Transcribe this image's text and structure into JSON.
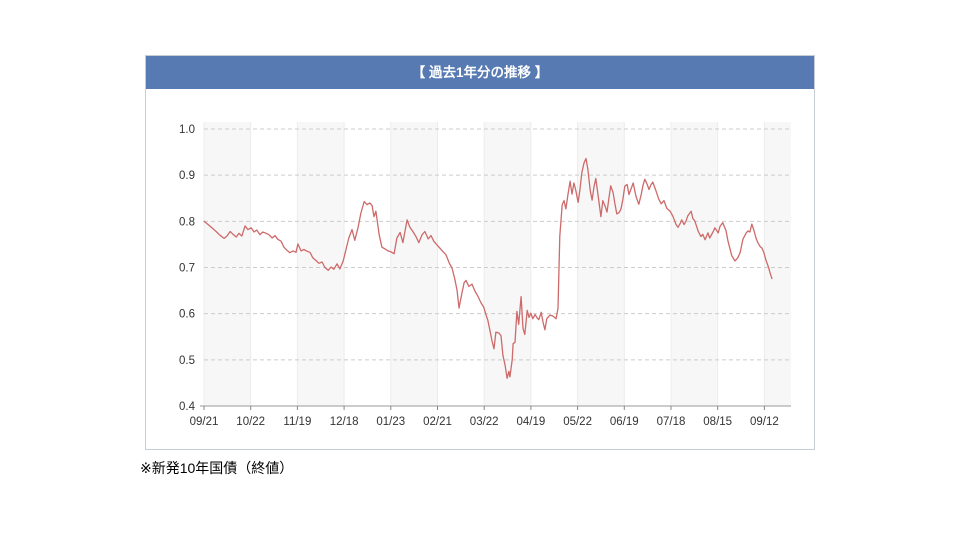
{
  "panel": {
    "title": "【 過去1年分の推移 】"
  },
  "footnote": "※新発10年国債（終値）",
  "colors": {
    "header_bg": "#567ab1",
    "panel_border": "#c6cdd6",
    "line": "#cd6a6a",
    "grid_dashed": "#cccccc",
    "band_fill": "#f7f7f7",
    "band_edge": "#ececec",
    "axis": "#999999",
    "tick": "#888888",
    "label": "#333333"
  },
  "chart_data": {
    "type": "line",
    "title": "【 過去1年分の推移 】",
    "series_name": "新発10年国債（終値）",
    "ylabel": "",
    "xlabel": "",
    "ylim": [
      0.4,
      1.0
    ],
    "grid": "horizontal-dashed",
    "alternating_vertical_bands": true,
    "legend": "none",
    "y_tick_labels": [
      "1.0",
      "0.9",
      "0.8",
      "0.7",
      "0.6",
      "0.5",
      "0.4"
    ],
    "y_tick_values": [
      1.0,
      0.9,
      0.8,
      0.7,
      0.6,
      0.5,
      0.4
    ],
    "x_tick_labels": [
      "09/21",
      "10/22",
      "11/19",
      "12/18",
      "01/23",
      "02/21",
      "03/22",
      "04/19",
      "05/22",
      "06/19",
      "07/18",
      "08/15",
      "09/12"
    ],
    "points_note": "x in x-tick interval units (0 = 09/21 ... 12 = 09/12), y in percent yield",
    "points": [
      [
        0.0,
        0.8
      ],
      [
        0.09,
        0.793
      ],
      [
        0.17,
        0.786
      ],
      [
        0.26,
        0.778
      ],
      [
        0.34,
        0.77
      ],
      [
        0.43,
        0.763
      ],
      [
        0.49,
        0.768
      ],
      [
        0.56,
        0.778
      ],
      [
        0.62,
        0.772
      ],
      [
        0.69,
        0.766
      ],
      [
        0.75,
        0.774
      ],
      [
        0.81,
        0.768
      ],
      [
        0.88,
        0.79
      ],
      [
        0.94,
        0.782
      ],
      [
        1.01,
        0.786
      ],
      [
        1.07,
        0.777
      ],
      [
        1.13,
        0.781
      ],
      [
        1.2,
        0.771
      ],
      [
        1.26,
        0.777
      ],
      [
        1.33,
        0.774
      ],
      [
        1.39,
        0.771
      ],
      [
        1.46,
        0.764
      ],
      [
        1.52,
        0.769
      ],
      [
        1.58,
        0.761
      ],
      [
        1.65,
        0.757
      ],
      [
        1.71,
        0.744
      ],
      [
        1.78,
        0.737
      ],
      [
        1.84,
        0.732
      ],
      [
        1.91,
        0.736
      ],
      [
        1.97,
        0.733
      ],
      [
        2.01,
        0.751
      ],
      [
        2.08,
        0.736
      ],
      [
        2.14,
        0.739
      ],
      [
        2.21,
        0.735
      ],
      [
        2.27,
        0.733
      ],
      [
        2.33,
        0.721
      ],
      [
        2.4,
        0.715
      ],
      [
        2.46,
        0.709
      ],
      [
        2.53,
        0.712
      ],
      [
        2.59,
        0.7
      ],
      [
        2.66,
        0.694
      ],
      [
        2.72,
        0.701
      ],
      [
        2.78,
        0.696
      ],
      [
        2.85,
        0.708
      ],
      [
        2.91,
        0.697
      ],
      [
        2.98,
        0.714
      ],
      [
        3.04,
        0.739
      ],
      [
        3.1,
        0.764
      ],
      [
        3.17,
        0.782
      ],
      [
        3.23,
        0.759
      ],
      [
        3.3,
        0.787
      ],
      [
        3.36,
        0.818
      ],
      [
        3.43,
        0.843
      ],
      [
        3.49,
        0.836
      ],
      [
        3.55,
        0.84
      ],
      [
        3.6,
        0.834
      ],
      [
        3.64,
        0.81
      ],
      [
        3.68,
        0.822
      ],
      [
        3.75,
        0.772
      ],
      [
        3.81,
        0.744
      ],
      [
        3.88,
        0.74
      ],
      [
        3.94,
        0.736
      ],
      [
        4.0,
        0.734
      ],
      [
        4.07,
        0.73
      ],
      [
        4.13,
        0.764
      ],
      [
        4.2,
        0.776
      ],
      [
        4.26,
        0.754
      ],
      [
        4.35,
        0.803
      ],
      [
        4.41,
        0.787
      ],
      [
        4.48,
        0.777
      ],
      [
        4.54,
        0.767
      ],
      [
        4.6,
        0.754
      ],
      [
        4.67,
        0.771
      ],
      [
        4.73,
        0.778
      ],
      [
        4.8,
        0.762
      ],
      [
        4.86,
        0.769
      ],
      [
        4.92,
        0.757
      ],
      [
        4.99,
        0.749
      ],
      [
        5.05,
        0.742
      ],
      [
        5.12,
        0.734
      ],
      [
        5.18,
        0.728
      ],
      [
        5.25,
        0.71
      ],
      [
        5.31,
        0.699
      ],
      [
        5.37,
        0.675
      ],
      [
        5.42,
        0.65
      ],
      [
        5.46,
        0.612
      ],
      [
        5.52,
        0.643
      ],
      [
        5.57,
        0.667
      ],
      [
        5.61,
        0.672
      ],
      [
        5.67,
        0.659
      ],
      [
        5.74,
        0.664
      ],
      [
        5.8,
        0.649
      ],
      [
        5.87,
        0.637
      ],
      [
        5.93,
        0.624
      ],
      [
        5.99,
        0.614
      ],
      [
        6.04,
        0.597
      ],
      [
        6.08,
        0.585
      ],
      [
        6.12,
        0.565
      ],
      [
        6.17,
        0.54
      ],
      [
        6.21,
        0.524
      ],
      [
        6.25,
        0.56
      ],
      [
        6.32,
        0.558
      ],
      [
        6.36,
        0.552
      ],
      [
        6.4,
        0.51
      ],
      [
        6.45,
        0.487
      ],
      [
        6.49,
        0.46
      ],
      [
        6.53,
        0.475
      ],
      [
        6.55,
        0.463
      ],
      [
        6.6,
        0.5
      ],
      [
        6.62,
        0.535
      ],
      [
        6.66,
        0.538
      ],
      [
        6.7,
        0.605
      ],
      [
        6.74,
        0.577
      ],
      [
        6.79,
        0.637
      ],
      [
        6.83,
        0.568
      ],
      [
        6.87,
        0.555
      ],
      [
        6.92,
        0.607
      ],
      [
        6.96,
        0.592
      ],
      [
        7.0,
        0.601
      ],
      [
        7.04,
        0.589
      ],
      [
        7.09,
        0.598
      ],
      [
        7.13,
        0.591
      ],
      [
        7.17,
        0.587
      ],
      [
        7.22,
        0.603
      ],
      [
        7.26,
        0.582
      ],
      [
        7.3,
        0.565
      ],
      [
        7.34,
        0.589
      ],
      [
        7.41,
        0.597
      ],
      [
        7.47,
        0.595
      ],
      [
        7.54,
        0.589
      ],
      [
        7.58,
        0.612
      ],
      [
        7.6,
        0.69
      ],
      [
        7.62,
        0.768
      ],
      [
        7.67,
        0.836
      ],
      [
        7.71,
        0.845
      ],
      [
        7.75,
        0.827
      ],
      [
        7.79,
        0.856
      ],
      [
        7.84,
        0.887
      ],
      [
        7.88,
        0.859
      ],
      [
        7.92,
        0.883
      ],
      [
        7.96,
        0.868
      ],
      [
        8.01,
        0.841
      ],
      [
        8.05,
        0.868
      ],
      [
        8.09,
        0.905
      ],
      [
        8.14,
        0.927
      ],
      [
        8.18,
        0.936
      ],
      [
        8.22,
        0.912
      ],
      [
        8.27,
        0.867
      ],
      [
        8.31,
        0.846
      ],
      [
        8.35,
        0.874
      ],
      [
        8.39,
        0.893
      ],
      [
        8.44,
        0.856
      ],
      [
        8.5,
        0.81
      ],
      [
        8.54,
        0.845
      ],
      [
        8.59,
        0.833
      ],
      [
        8.63,
        0.82
      ],
      [
        8.67,
        0.85
      ],
      [
        8.71,
        0.877
      ],
      [
        8.76,
        0.862
      ],
      [
        8.8,
        0.838
      ],
      [
        8.84,
        0.816
      ],
      [
        8.89,
        0.819
      ],
      [
        8.93,
        0.827
      ],
      [
        8.97,
        0.848
      ],
      [
        9.01,
        0.876
      ],
      [
        9.06,
        0.88
      ],
      [
        9.1,
        0.858
      ],
      [
        9.14,
        0.869
      ],
      [
        9.19,
        0.883
      ],
      [
        9.25,
        0.854
      ],
      [
        9.31,
        0.837
      ],
      [
        9.36,
        0.857
      ],
      [
        9.4,
        0.878
      ],
      [
        9.44,
        0.891
      ],
      [
        9.49,
        0.88
      ],
      [
        9.53,
        0.869
      ],
      [
        9.57,
        0.879
      ],
      [
        9.61,
        0.885
      ],
      [
        9.68,
        0.866
      ],
      [
        9.74,
        0.848
      ],
      [
        9.79,
        0.838
      ],
      [
        9.85,
        0.845
      ],
      [
        9.91,
        0.828
      ],
      [
        9.98,
        0.822
      ],
      [
        10.04,
        0.811
      ],
      [
        10.11,
        0.793
      ],
      [
        10.15,
        0.787
      ],
      [
        10.19,
        0.794
      ],
      [
        10.23,
        0.803
      ],
      [
        10.28,
        0.793
      ],
      [
        10.32,
        0.8
      ],
      [
        10.36,
        0.812
      ],
      [
        10.43,
        0.822
      ],
      [
        10.47,
        0.806
      ],
      [
        10.51,
        0.801
      ],
      [
        10.58,
        0.779
      ],
      [
        10.64,
        0.767
      ],
      [
        10.68,
        0.772
      ],
      [
        10.73,
        0.76
      ],
      [
        10.79,
        0.775
      ],
      [
        10.83,
        0.764
      ],
      [
        10.9,
        0.777
      ],
      [
        10.94,
        0.786
      ],
      [
        11.01,
        0.775
      ],
      [
        11.05,
        0.789
      ],
      [
        11.11,
        0.797
      ],
      [
        11.18,
        0.779
      ],
      [
        11.22,
        0.757
      ],
      [
        11.26,
        0.742
      ],
      [
        11.3,
        0.726
      ],
      [
        11.37,
        0.714
      ],
      [
        11.43,
        0.721
      ],
      [
        11.48,
        0.732
      ],
      [
        11.54,
        0.761
      ],
      [
        11.61,
        0.775
      ],
      [
        11.65,
        0.779
      ],
      [
        11.69,
        0.777
      ],
      [
        11.73,
        0.794
      ],
      [
        11.78,
        0.779
      ],
      [
        11.82,
        0.764
      ],
      [
        11.86,
        0.754
      ],
      [
        11.91,
        0.745
      ],
      [
        11.95,
        0.742
      ],
      [
        11.99,
        0.732
      ],
      [
        12.03,
        0.717
      ],
      [
        12.08,
        0.703
      ],
      [
        12.12,
        0.689
      ],
      [
        12.16,
        0.676
      ]
    ]
  }
}
